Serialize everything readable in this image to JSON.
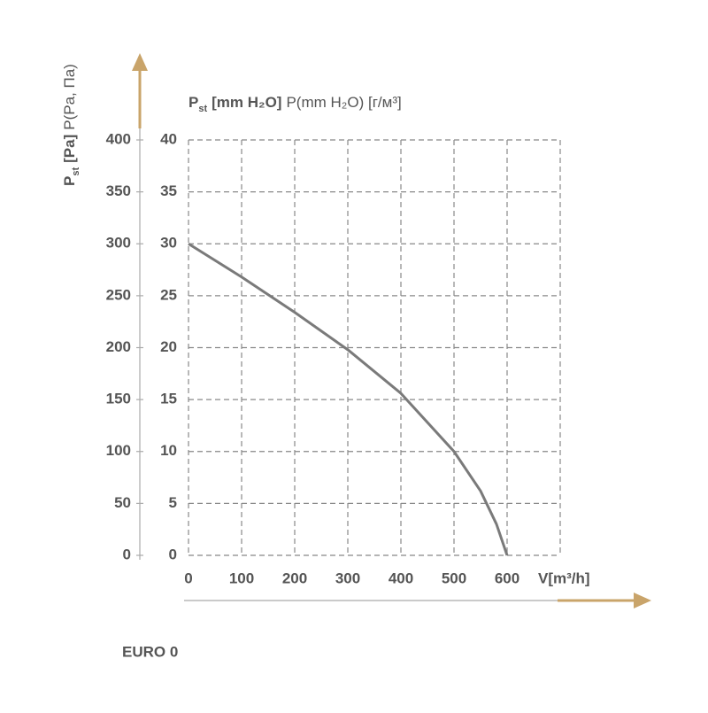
{
  "chart_data": {
    "type": "line",
    "title_parts": [
      "P",
      "st",
      "[mm H₂O]",
      "P(mm H₂O) [г/м³]"
    ],
    "y2_label_parts": [
      "P",
      "st",
      "[Pa]",
      "P(Pa, Па)"
    ],
    "x_label": "V[m³/h]",
    "footer": "EURO 0",
    "x": [
      0,
      100,
      200,
      300,
      400,
      500,
      550,
      580,
      600
    ],
    "series": [
      {
        "name": "EURO 0",
        "color": "#7a7a7a",
        "values": [
          30,
          26.8,
          23.4,
          19.8,
          15.6,
          10,
          6.2,
          3,
          0
        ]
      }
    ],
    "xlim": [
      0,
      700
    ],
    "xticks": [
      0,
      100,
      200,
      300,
      400,
      500,
      600
    ],
    "ylim": [
      0,
      40
    ],
    "yticks": [
      0,
      5,
      10,
      15,
      20,
      25,
      30,
      35,
      40
    ],
    "y2lim": [
      0,
      400
    ],
    "y2ticks": [
      0,
      50,
      100,
      150,
      200,
      250,
      300,
      350,
      400
    ],
    "grid": true
  }
}
